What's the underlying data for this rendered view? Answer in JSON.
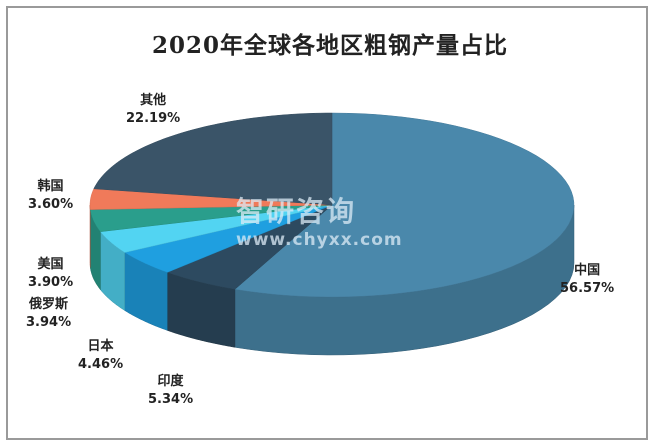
{
  "chart_data": {
    "type": "pie",
    "title": "2020年全球各地区粗钢产量占比",
    "categories": [
      "中国",
      "印度",
      "日本",
      "俄罗斯",
      "美国",
      "韩国",
      "其他"
    ],
    "values": [
      56.57,
      5.34,
      4.46,
      3.94,
      3.9,
      3.6,
      22.19
    ],
    "value_labels": [
      "56.57%",
      "5.34%",
      "4.46%",
      "3.94%",
      "3.90%",
      "3.60%",
      "22.19%"
    ],
    "colors": [
      "#4a88ab",
      "#2d4a60",
      "#1f9fe0",
      "#52d4f2",
      "#2a9e8c",
      "#f07a5a",
      "#3a5468"
    ],
    "style": "3d",
    "legend": "none"
  },
  "watermark": {
    "brand": "智研咨询",
    "url": "www.chyxx.com"
  }
}
